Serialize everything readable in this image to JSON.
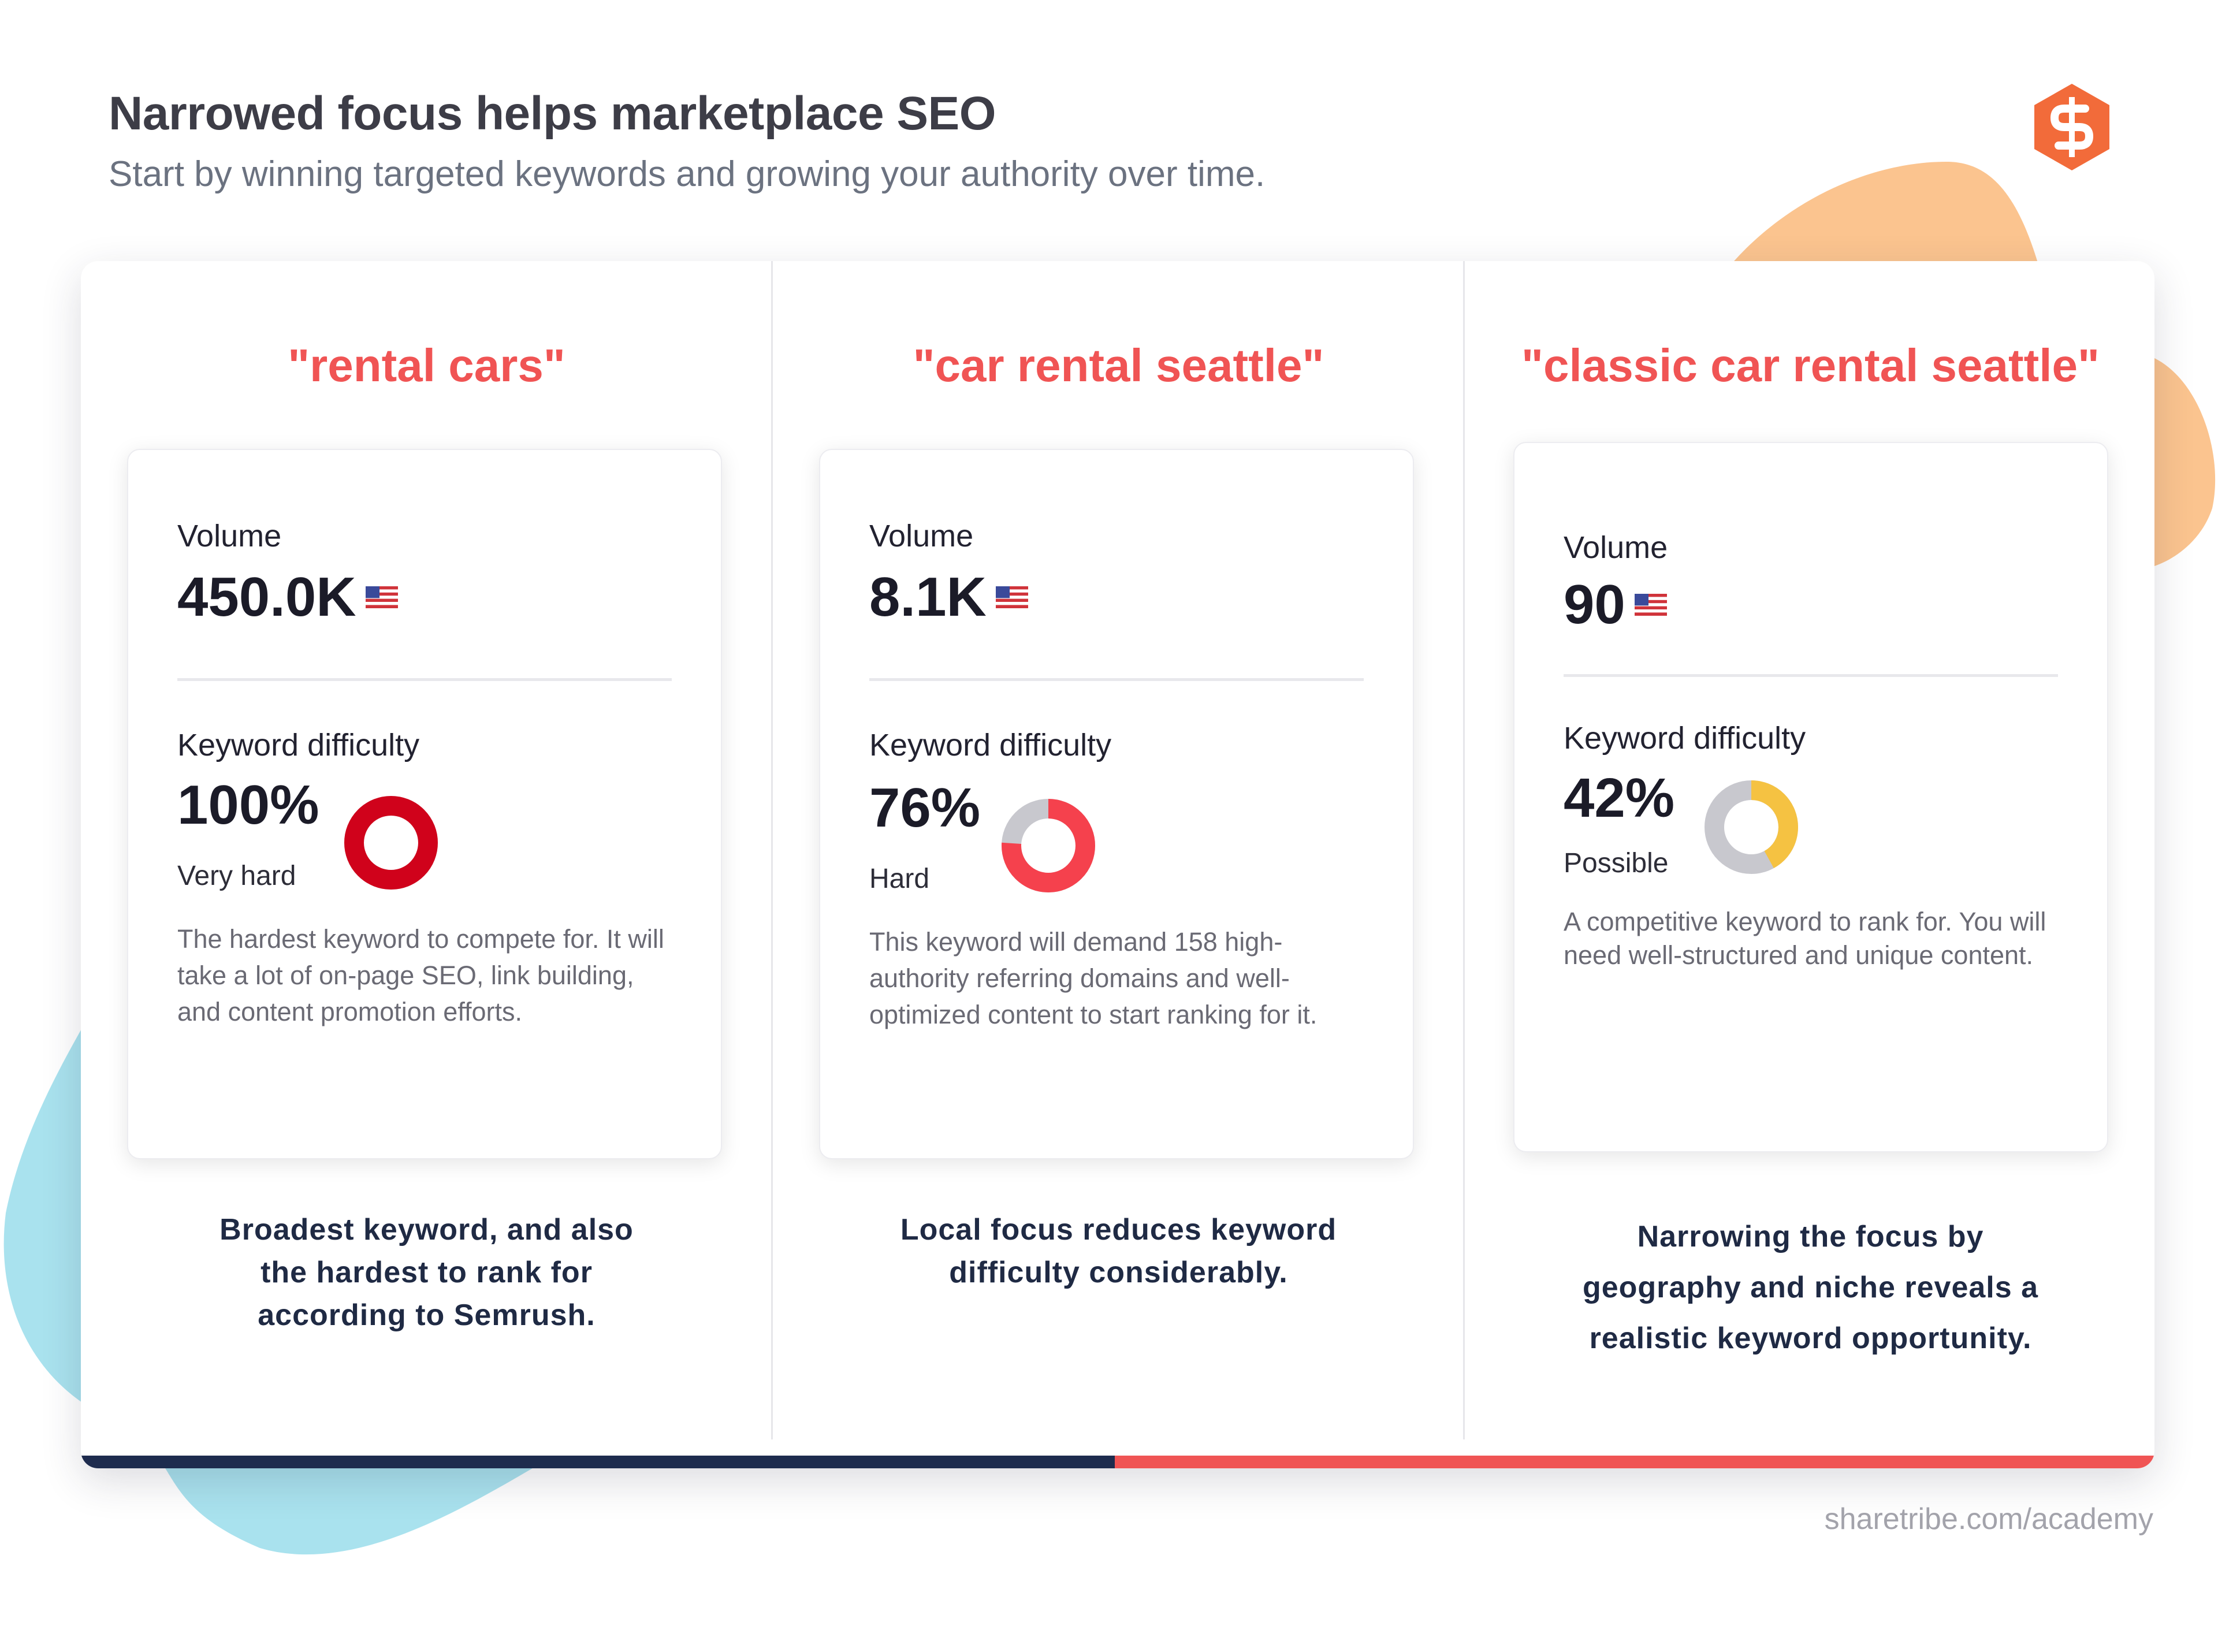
{
  "header": {
    "title": "Narrowed focus helps marketplace SEO",
    "subtitle": "Start by winning targeted keywords and growing your authority over time."
  },
  "columns": [
    {
      "keyword": "\"rental cars\"",
      "volume_label": "Volume",
      "volume_value": "450.0K",
      "difficulty_label": "Keyword difficulty",
      "difficulty_percent": "100%",
      "difficulty_fraction": 1.0,
      "difficulty_rating": "Very hard",
      "difficulty_color": "#d0021b",
      "description": "The hardest keyword to compete for. It will take a lot of on-page SEO, link building, and content promotion efforts.",
      "caption_lines": [
        "Broadest keyword, and also",
        "the hardest to rank for",
        "according to Semrush."
      ]
    },
    {
      "keyword": "\"car rental seattle\"",
      "volume_label": "Volume",
      "volume_value": "8.1K",
      "difficulty_label": "Keyword difficulty",
      "difficulty_percent": "76%",
      "difficulty_fraction": 0.76,
      "difficulty_rating": "Hard",
      "difficulty_color": "#f5414d",
      "description": "This keyword will demand 158 high-authority referring domains and well-optimized content to start ranking for it.",
      "caption_lines": [
        "Local focus reduces keyword",
        "difficulty considerably."
      ]
    },
    {
      "keyword": "\"classic car rental seattle\"",
      "volume_label": "Volume",
      "volume_value": "90",
      "difficulty_label": "Keyword difficulty",
      "difficulty_percent": "42%",
      "difficulty_fraction": 0.42,
      "difficulty_rating": "Possible",
      "difficulty_color": "#f5c242",
      "description": "A competitive keyword to rank for. You will need well-structured and unique content.",
      "caption_lines": [
        "Narrowing the focus by",
        "geography and niche reveals a",
        "realistic keyword opportunity."
      ]
    }
  ],
  "colors": {
    "accent": "#f05454",
    "navy": "#1e2c4e",
    "donut_track": "#c8c8ce",
    "blob_orange": "#fbc48f",
    "blob_blue": "#a9e2ee"
  },
  "icons": [
    "sharetribe-logo-icon",
    "us-flag-icon",
    "difficulty-donut-icon"
  ],
  "footer": {
    "url": "sharetribe.com/academy"
  }
}
